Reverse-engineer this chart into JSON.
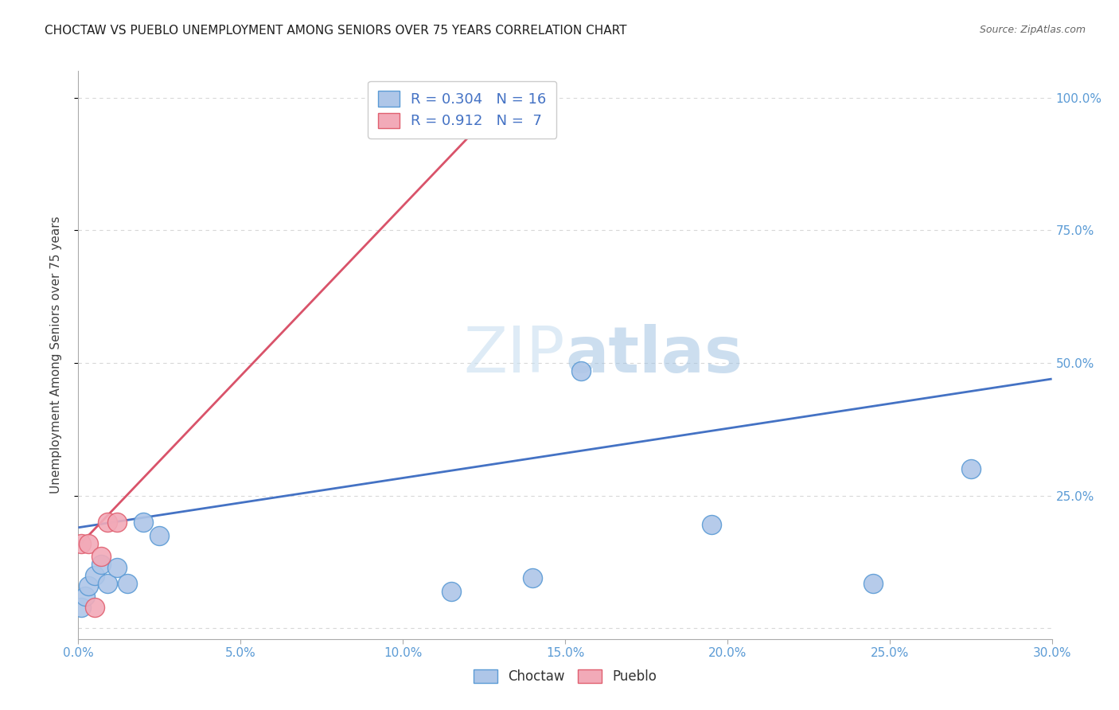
{
  "title": "CHOCTAW VS PUEBLO UNEMPLOYMENT AMONG SENIORS OVER 75 YEARS CORRELATION CHART",
  "source": "Source: ZipAtlas.com",
  "ylabel": "Unemployment Among Seniors over 75 years",
  "xlim": [
    0.0,
    0.3
  ],
  "ylim": [
    -0.02,
    1.05
  ],
  "xtick_labels": [
    "0.0%",
    "5.0%",
    "10.0%",
    "15.0%",
    "20.0%",
    "25.0%",
    "30.0%"
  ],
  "xtick_vals": [
    0.0,
    0.05,
    0.1,
    0.15,
    0.2,
    0.25,
    0.3
  ],
  "ytick_labels": [
    "100.0%",
    "75.0%",
    "50.0%",
    "25.0%"
  ],
  "ytick_vals": [
    1.0,
    0.75,
    0.5,
    0.25
  ],
  "ytick_grid_vals": [
    1.0,
    0.75,
    0.5,
    0.25,
    0.0
  ],
  "choctaw_color": "#aec6e8",
  "pueblo_color": "#f2aab8",
  "choctaw_edge_color": "#5b9bd5",
  "pueblo_edge_color": "#e06070",
  "choctaw_line_color": "#4472c4",
  "pueblo_line_color": "#d9536a",
  "choctaw_R": 0.304,
  "choctaw_N": 16,
  "pueblo_R": 0.912,
  "pueblo_N": 7,
  "watermark_zip": "ZIP",
  "watermark_atlas": "atlas",
  "choctaw_points_x": [
    0.001,
    0.002,
    0.003,
    0.005,
    0.007,
    0.009,
    0.012,
    0.015,
    0.02,
    0.025,
    0.115,
    0.14,
    0.155,
    0.195,
    0.245,
    0.275
  ],
  "choctaw_points_y": [
    0.04,
    0.06,
    0.08,
    0.1,
    0.12,
    0.085,
    0.115,
    0.085,
    0.2,
    0.175,
    0.07,
    0.095,
    0.485,
    0.195,
    0.085,
    0.3
  ],
  "pueblo_points_x": [
    0.001,
    0.003,
    0.005,
    0.007,
    0.009,
    0.012,
    0.135
  ],
  "pueblo_points_y": [
    0.16,
    0.16,
    0.04,
    0.135,
    0.2,
    0.2,
    1.0
  ],
  "choctaw_line_x0": 0.0,
  "choctaw_line_y0": 0.19,
  "choctaw_line_x1": 0.3,
  "choctaw_line_y1": 0.47,
  "pueblo_line_x0": 0.0,
  "pueblo_line_y0": 0.155,
  "pueblo_line_x1": 0.135,
  "pueblo_line_y1": 1.02,
  "background_color": "#ffffff",
  "grid_color": "#d8d8d8",
  "tick_color": "#5b9bd5",
  "label_color": "#404040",
  "title_color": "#202020"
}
